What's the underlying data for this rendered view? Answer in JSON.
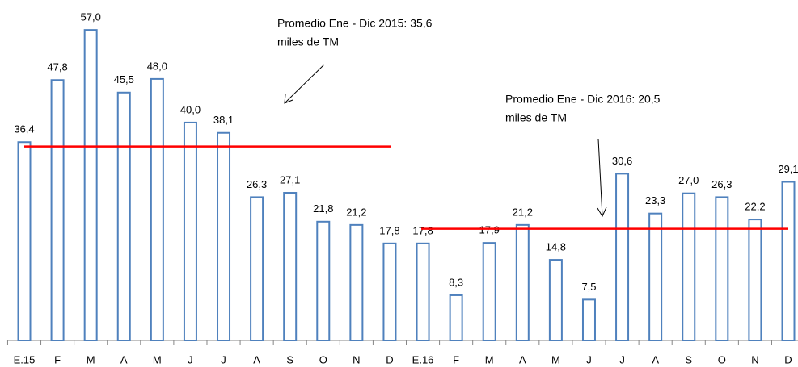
{
  "chart_data": {
    "type": "bar",
    "categories": [
      "E.15",
      "F",
      "M",
      "A",
      "M",
      "J",
      "J",
      "A",
      "S",
      "O",
      "N",
      "D",
      "E.16",
      "F",
      "M",
      "A",
      "M",
      "J",
      "J",
      "A",
      "S",
      "O",
      "N",
      "D"
    ],
    "values": [
      36.4,
      47.8,
      57.0,
      45.5,
      48.0,
      40.0,
      38.1,
      26.3,
      27.1,
      21.8,
      21.2,
      17.8,
      17.8,
      8.3,
      17.9,
      21.2,
      14.8,
      7.5,
      30.6,
      23.3,
      27.0,
      26.3,
      22.2,
      29.1
    ],
    "value_labels": [
      "36,4",
      "47,8",
      "57,0",
      "45,5",
      "48,0",
      "40,0",
      "38,1",
      "26,3",
      "27,1",
      "21,8",
      "21,2",
      "17,8",
      "17,8",
      "8,3",
      "17,9",
      "21,2",
      "14,8",
      "7,5",
      "30,6",
      "23,3",
      "27,0",
      "26,3",
      "22,2",
      "29,1"
    ],
    "color": "#4f81bd",
    "ylim": [
      0,
      62.5
    ],
    "reference_lines": [
      {
        "value": 35.6,
        "color": "#ff0000",
        "label": [
          "Promedio Ene - Dic 2015:  35,6",
          "miles de TM"
        ]
      },
      {
        "value": 20.5,
        "color": "#ff0000",
        "label": [
          "Promedio Ene - Dic 2016:  20,5",
          "miles de TM"
        ]
      }
    ]
  }
}
